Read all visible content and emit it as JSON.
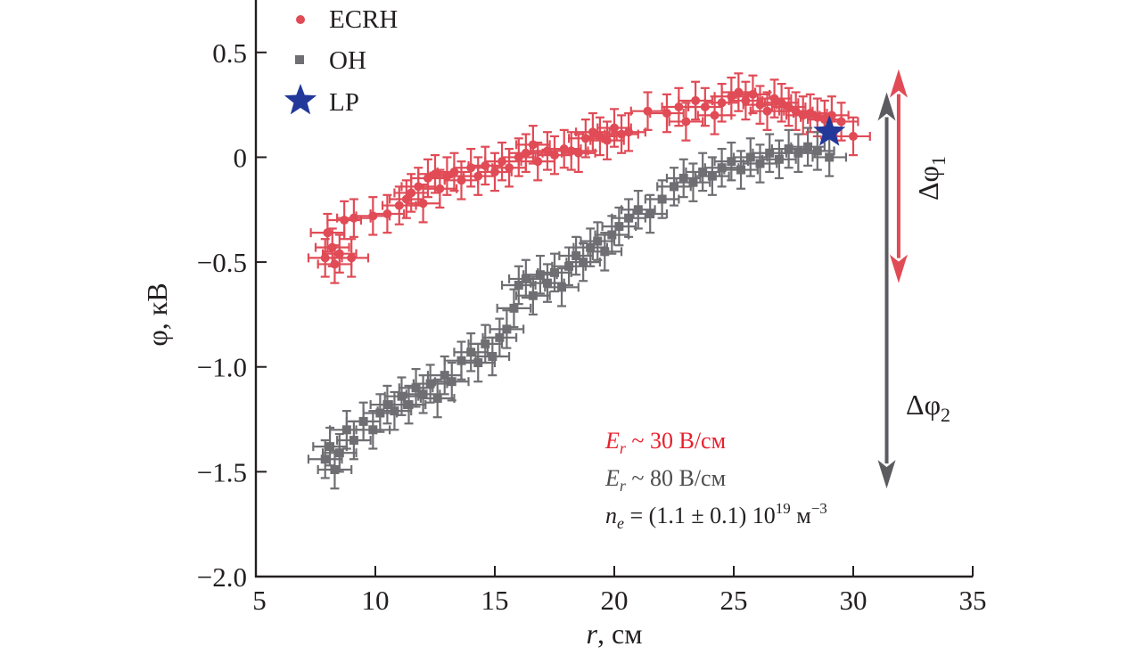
{
  "chart_data": {
    "type": "scatter",
    "title": "",
    "xlabel_italic": "r",
    "xlabel_rest": ", см",
    "ylabel": "φ, кВ",
    "xlim": [
      5,
      35
    ],
    "ylim": [
      -2.0,
      0.75
    ],
    "xticks": [
      5,
      10,
      15,
      20,
      25,
      30,
      35
    ],
    "xtick_labels": [
      "5",
      "10",
      "15",
      "20",
      "25",
      "30",
      "35"
    ],
    "yticks": [
      0.5,
      0,
      -0.5,
      -1.0,
      -1.5,
      -2.0
    ],
    "ytick_labels": [
      "0.5",
      "0",
      "−0.5",
      "−1.0",
      "−1.5",
      "−2.0"
    ],
    "grid": false,
    "legend_position": "top-left",
    "colors": {
      "ecrh": "#e04b56",
      "oh": "#6e6e73",
      "lp": "#22399a",
      "axis": "#231f20"
    },
    "series": [
      {
        "name": "ECRH",
        "marker": "circle",
        "color": "#e04b56",
        "xerr": 0.7,
        "yerr": 0.09,
        "points": [
          [
            7.9,
            -0.48
          ],
          [
            8.0,
            -0.36
          ],
          [
            8.2,
            -0.43
          ],
          [
            8.3,
            -0.51
          ],
          [
            8.5,
            -0.46
          ],
          [
            8.7,
            -0.3
          ],
          [
            9.0,
            -0.48
          ],
          [
            9.1,
            -0.29
          ],
          [
            9.9,
            -0.28
          ],
          [
            10.5,
            -0.27
          ],
          [
            11.0,
            -0.23
          ],
          [
            11.3,
            -0.2
          ],
          [
            11.5,
            -0.17
          ],
          [
            11.8,
            -0.14
          ],
          [
            12.0,
            -0.22
          ],
          [
            12.2,
            -0.1
          ],
          [
            12.5,
            -0.08
          ],
          [
            12.7,
            -0.15
          ],
          [
            13.0,
            -0.09
          ],
          [
            13.3,
            -0.07
          ],
          [
            13.6,
            -0.11
          ],
          [
            14.0,
            -0.05
          ],
          [
            14.3,
            -0.09
          ],
          [
            14.6,
            -0.04
          ],
          [
            15.0,
            -0.07
          ],
          [
            15.3,
            -0.02
          ],
          [
            15.6,
            -0.05
          ],
          [
            16.0,
            0.0
          ],
          [
            16.3,
            0.02
          ],
          [
            16.6,
            0.06
          ],
          [
            16.8,
            -0.02
          ],
          [
            17.2,
            0.03
          ],
          [
            17.5,
            0.01
          ],
          [
            17.9,
            0.04
          ],
          [
            18.2,
            0.03
          ],
          [
            18.5,
            0.02
          ],
          [
            18.8,
            0.09
          ],
          [
            19.1,
            0.12
          ],
          [
            19.4,
            0.1
          ],
          [
            19.7,
            0.08
          ],
          [
            20.0,
            0.14
          ],
          [
            20.3,
            0.11
          ],
          [
            20.6,
            0.12
          ],
          [
            21.4,
            0.22
          ],
          [
            22.2,
            0.21
          ],
          [
            22.7,
            0.24
          ],
          [
            23.0,
            0.17
          ],
          [
            23.4,
            0.27
          ],
          [
            23.8,
            0.24
          ],
          [
            24.2,
            0.2
          ],
          [
            24.5,
            0.26
          ],
          [
            24.9,
            0.29
          ],
          [
            25.2,
            0.31
          ],
          [
            25.5,
            0.27
          ],
          [
            25.8,
            0.3
          ],
          [
            26.1,
            0.25
          ],
          [
            26.4,
            0.22
          ],
          [
            26.7,
            0.28
          ],
          [
            27.0,
            0.26
          ],
          [
            27.3,
            0.24
          ],
          [
            27.6,
            0.22
          ],
          [
            27.9,
            0.2
          ],
          [
            28.2,
            0.21
          ],
          [
            28.5,
            0.19
          ],
          [
            28.8,
            0.18
          ],
          [
            29.1,
            0.2
          ],
          [
            29.5,
            0.17
          ],
          [
            30.0,
            0.1
          ]
        ]
      },
      {
        "name": "OH",
        "marker": "square",
        "color": "#6e6e73",
        "xerr": 0.7,
        "yerr": 0.09,
        "points": [
          [
            7.9,
            -1.44
          ],
          [
            8.1,
            -1.38
          ],
          [
            8.3,
            -1.49
          ],
          [
            8.5,
            -1.41
          ],
          [
            8.8,
            -1.3
          ],
          [
            9.1,
            -1.35
          ],
          [
            9.5,
            -1.26
          ],
          [
            9.9,
            -1.3
          ],
          [
            10.2,
            -1.22
          ],
          [
            10.5,
            -1.18
          ],
          [
            10.8,
            -1.21
          ],
          [
            11.1,
            -1.14
          ],
          [
            11.4,
            -1.18
          ],
          [
            11.7,
            -1.1
          ],
          [
            12.0,
            -1.13
          ],
          [
            12.3,
            -1.08
          ],
          [
            12.6,
            -1.15
          ],
          [
            12.9,
            -1.04
          ],
          [
            13.2,
            -1.07
          ],
          [
            13.6,
            -0.97
          ],
          [
            14.0,
            -0.93
          ],
          [
            14.3,
            -0.98
          ],
          [
            14.6,
            -0.89
          ],
          [
            14.9,
            -0.95
          ],
          [
            15.2,
            -0.86
          ],
          [
            15.5,
            -0.82
          ],
          [
            15.8,
            -0.72
          ],
          [
            16.0,
            -0.61
          ],
          [
            16.3,
            -0.58
          ],
          [
            16.6,
            -0.66
          ],
          [
            16.9,
            -0.56
          ],
          [
            17.2,
            -0.6
          ],
          [
            17.5,
            -0.55
          ],
          [
            17.8,
            -0.62
          ],
          [
            18.1,
            -0.52
          ],
          [
            18.4,
            -0.47
          ],
          [
            18.7,
            -0.5
          ],
          [
            19.0,
            -0.43
          ],
          [
            19.3,
            -0.4
          ],
          [
            19.6,
            -0.45
          ],
          [
            19.9,
            -0.37
          ],
          [
            20.2,
            -0.33
          ],
          [
            20.6,
            -0.29
          ],
          [
            21.0,
            -0.25
          ],
          [
            21.5,
            -0.27
          ],
          [
            22.0,
            -0.2
          ],
          [
            22.5,
            -0.14
          ],
          [
            22.9,
            -0.1
          ],
          [
            23.3,
            -0.12
          ],
          [
            23.7,
            -0.07
          ],
          [
            24.1,
            -0.09
          ],
          [
            24.5,
            -0.05
          ],
          [
            24.9,
            -0.02
          ],
          [
            25.3,
            -0.06
          ],
          [
            25.7,
            0.0
          ],
          [
            26.1,
            -0.03
          ],
          [
            26.5,
            0.02
          ],
          [
            26.9,
            -0.01
          ],
          [
            27.3,
            0.04
          ],
          [
            27.7,
            0.02
          ],
          [
            28.1,
            0.05
          ],
          [
            28.5,
            0.03
          ],
          [
            29.0,
            0.0
          ]
        ]
      },
      {
        "name": "LP",
        "marker": "star",
        "color": "#22399a",
        "points": [
          [
            29.0,
            0.12
          ]
        ]
      }
    ],
    "arrows": [
      {
        "name": "delta-phi-1",
        "label": "Δφ",
        "subscript": "1",
        "color": "#e04b56",
        "x": 31.9,
        "y_top": 0.42,
        "y_bottom": -0.6,
        "double_headed": true
      },
      {
        "name": "delta-phi-2",
        "label": "Δφ",
        "subscript": "2",
        "color": "#5c5c60",
        "x": 31.4,
        "y_top": 0.31,
        "y_bottom": -1.58,
        "double_headed": true
      }
    ],
    "annotations": [
      {
        "name": "er-ecrh",
        "var": "E",
        "sub": "r",
        "text": " ~ 30 В/см",
        "color": "#e8202e"
      },
      {
        "name": "er-oh",
        "var": "E",
        "sub": "r",
        "text": " ~ 80 В/см",
        "color": "#4d4d4f"
      },
      {
        "name": "ne",
        "var": "n",
        "sub": "e",
        "text": " =  (1.1 ± 0.1) 10",
        "sup": "19",
        "text2": " м",
        "sup2": "−3",
        "color": "#231f20"
      }
    ]
  }
}
